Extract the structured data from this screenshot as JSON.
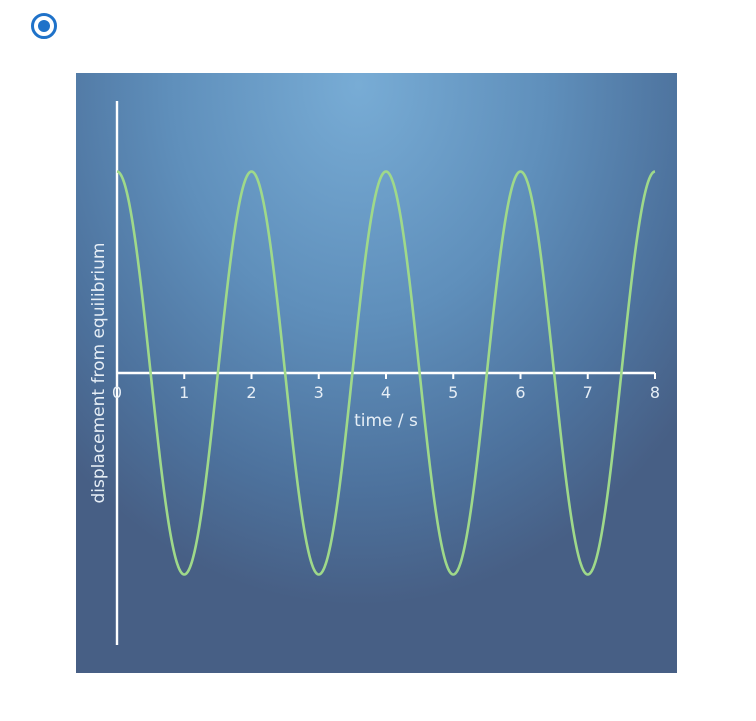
{
  "answer_option": {
    "selected": true,
    "icon": "radio-selected-icon",
    "accent_color": "#1f72c9"
  },
  "chart_data": {
    "type": "line",
    "title": "",
    "xlabel": "time / s",
    "ylabel": "displacement from equilibrium",
    "x_ticks": [
      0,
      1,
      2,
      3,
      4,
      5,
      6,
      7,
      8
    ],
    "xlim": [
      0,
      8
    ],
    "ylim": [
      -1.35,
      1.35
    ],
    "grid": false,
    "y_tick_labels_shown": false,
    "series": [
      {
        "function": "cosine",
        "amplitude": 1,
        "period_s": 2,
        "x_range": [
          0,
          8
        ],
        "color": "#9fd98a"
      }
    ],
    "background": {
      "top": "#78acd5",
      "bottom": "#475f85"
    },
    "axis_color": "#ffffff"
  }
}
